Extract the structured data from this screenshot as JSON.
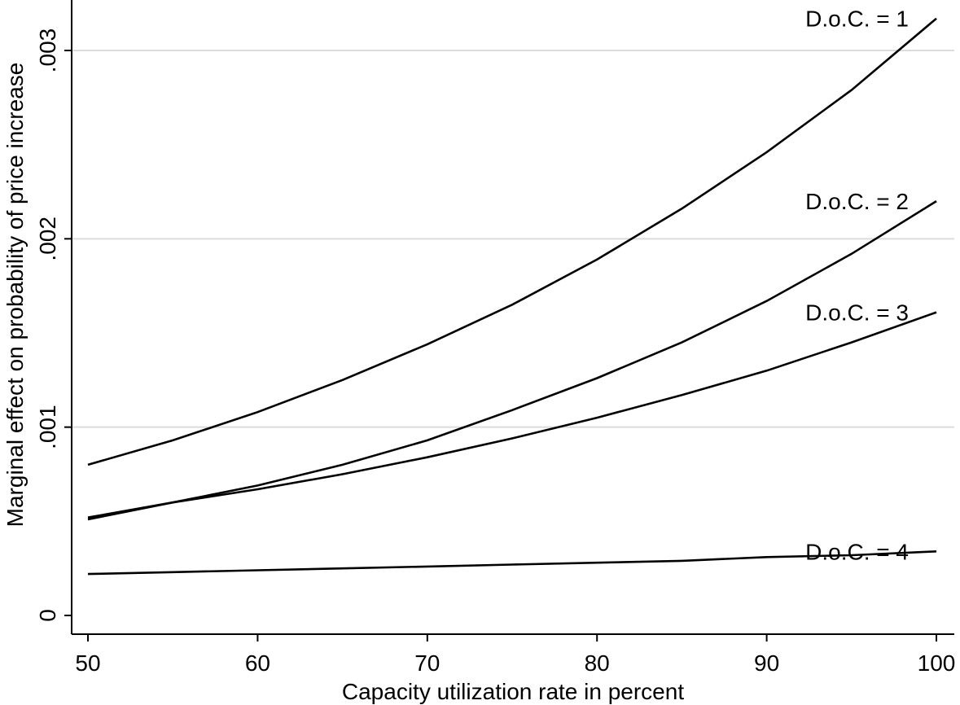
{
  "chart_data": {
    "type": "line",
    "title": "",
    "xlabel": "Capacity utilization rate in percent",
    "ylabel": "Marginal effect on probability of price increase",
    "xlim": [
      50,
      100
    ],
    "ylim": [
      0,
      0.003
    ],
    "xticks": [
      50,
      60,
      70,
      80,
      90,
      100
    ],
    "xtick_labels": [
      "50",
      "60",
      "70",
      "80",
      "90",
      "100"
    ],
    "yticks": [
      0,
      0.001,
      0.002,
      0.003
    ],
    "ytick_labels": [
      "0",
      ".001",
      ".002",
      ".003"
    ],
    "grid": "horizontal",
    "legend": "none",
    "x": [
      50,
      55,
      60,
      65,
      70,
      75,
      80,
      85,
      90,
      95,
      100
    ],
    "series": [
      {
        "name": "D.o.C. = 1",
        "values": [
          0.0008,
          0.00093,
          0.00108,
          0.00125,
          0.00144,
          0.00165,
          0.00189,
          0.00216,
          0.00246,
          0.00279,
          0.00317
        ]
      },
      {
        "name": "D.o.C. = 2",
        "values": [
          0.00052,
          0.0006,
          0.00069,
          0.0008,
          0.00093,
          0.00109,
          0.00126,
          0.00145,
          0.00167,
          0.00192,
          0.0022
        ]
      },
      {
        "name": "D.o.C. = 3",
        "values": [
          0.00051,
          0.0006,
          0.00067,
          0.00075,
          0.00084,
          0.00094,
          0.00105,
          0.00117,
          0.0013,
          0.00145,
          0.00161
        ]
      },
      {
        "name": "D.o.C. = 4",
        "values": [
          0.00022,
          0.00023,
          0.00024,
          0.00025,
          0.00026,
          0.00027,
          0.00028,
          0.00029,
          0.00031,
          0.00032,
          0.00034
        ]
      }
    ]
  }
}
